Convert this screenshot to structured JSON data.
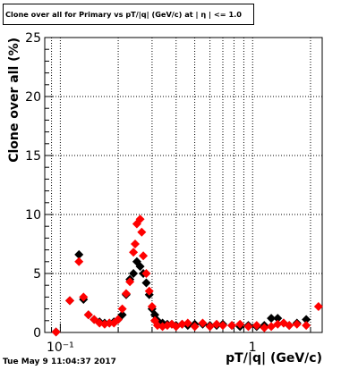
{
  "chart_data": {
    "type": "scatter",
    "title": "Clone  over all for Primary vs pT/|q| (GeV/c) at |  η | <= 1.0",
    "xlabel": "pT/|q| (GeV/c)",
    "ylabel": "Clone  over all (%)",
    "x_scale": "log",
    "xlim": [
      0.083,
      2.3
    ],
    "ylim": [
      0,
      25
    ],
    "y_ticks": [
      "0",
      "5",
      "10",
      "15",
      "20",
      "25"
    ],
    "x_tick_labels": [
      {
        "value": 0.1,
        "label": "10⁻¹"
      },
      {
        "value": 1,
        "label": "1"
      }
    ],
    "grid": true,
    "series": [
      {
        "color": "#000000",
        "marker": "diamond",
        "points": [
          {
            "x": 0.095,
            "y": 0.05
          },
          {
            "x": 0.112,
            "y": 2.7
          },
          {
            "x": 0.125,
            "y": 6.6
          },
          {
            "x": 0.132,
            "y": 2.8
          },
          {
            "x": 0.14,
            "y": 1.5
          },
          {
            "x": 0.15,
            "y": 1.1
          },
          {
            "x": 0.16,
            "y": 0.9
          },
          {
            "x": 0.17,
            "y": 0.8
          },
          {
            "x": 0.18,
            "y": 0.8
          },
          {
            "x": 0.19,
            "y": 0.9
          },
          {
            "x": 0.2,
            "y": 1.1
          },
          {
            "x": 0.21,
            "y": 1.5
          },
          {
            "x": 0.22,
            "y": 3.2
          },
          {
            "x": 0.23,
            "y": 4.5
          },
          {
            "x": 0.24,
            "y": 5.0
          },
          {
            "x": 0.25,
            "y": 6.0
          },
          {
            "x": 0.26,
            "y": 5.6
          },
          {
            "x": 0.27,
            "y": 5.0
          },
          {
            "x": 0.28,
            "y": 4.2
          },
          {
            "x": 0.29,
            "y": 3.2
          },
          {
            "x": 0.3,
            "y": 2.0
          },
          {
            "x": 0.31,
            "y": 1.5
          },
          {
            "x": 0.32,
            "y": 1.0
          },
          {
            "x": 0.34,
            "y": 0.8
          },
          {
            "x": 0.36,
            "y": 0.7
          },
          {
            "x": 0.38,
            "y": 0.7
          },
          {
            "x": 0.4,
            "y": 0.6
          },
          {
            "x": 0.43,
            "y": 0.7
          },
          {
            "x": 0.46,
            "y": 0.6
          },
          {
            "x": 0.5,
            "y": 0.7
          },
          {
            "x": 0.55,
            "y": 0.7
          },
          {
            "x": 0.6,
            "y": 0.6
          },
          {
            "x": 0.65,
            "y": 0.6
          },
          {
            "x": 0.7,
            "y": 0.7
          },
          {
            "x": 0.78,
            "y": 0.6
          },
          {
            "x": 0.86,
            "y": 0.5
          },
          {
            "x": 0.95,
            "y": 0.6
          },
          {
            "x": 1.05,
            "y": 0.5
          },
          {
            "x": 1.15,
            "y": 0.6
          },
          {
            "x": 1.25,
            "y": 1.2
          },
          {
            "x": 1.35,
            "y": 1.2
          },
          {
            "x": 1.45,
            "y": 0.8
          },
          {
            "x": 1.55,
            "y": 0.6
          },
          {
            "x": 1.7,
            "y": 0.8
          },
          {
            "x": 1.9,
            "y": 1.1
          }
        ]
      },
      {
        "color": "#ff0000",
        "marker": "diamond",
        "points": [
          {
            "x": 0.095,
            "y": 0.0
          },
          {
            "x": 0.112,
            "y": 2.7
          },
          {
            "x": 0.125,
            "y": 6.0
          },
          {
            "x": 0.132,
            "y": 3.0
          },
          {
            "x": 0.14,
            "y": 1.5
          },
          {
            "x": 0.15,
            "y": 1.1
          },
          {
            "x": 0.16,
            "y": 0.8
          },
          {
            "x": 0.17,
            "y": 0.7
          },
          {
            "x": 0.18,
            "y": 0.8
          },
          {
            "x": 0.19,
            "y": 0.8
          },
          {
            "x": 0.2,
            "y": 1.1
          },
          {
            "x": 0.21,
            "y": 2.0
          },
          {
            "x": 0.22,
            "y": 3.3
          },
          {
            "x": 0.23,
            "y": 4.3
          },
          {
            "x": 0.24,
            "y": 6.8
          },
          {
            "x": 0.245,
            "y": 7.5
          },
          {
            "x": 0.25,
            "y": 9.2
          },
          {
            "x": 0.26,
            "y": 9.6
          },
          {
            "x": 0.265,
            "y": 8.5
          },
          {
            "x": 0.27,
            "y": 6.5
          },
          {
            "x": 0.28,
            "y": 5.0
          },
          {
            "x": 0.29,
            "y": 3.5
          },
          {
            "x": 0.3,
            "y": 2.2
          },
          {
            "x": 0.31,
            "y": 1.0
          },
          {
            "x": 0.32,
            "y": 0.6
          },
          {
            "x": 0.34,
            "y": 0.5
          },
          {
            "x": 0.36,
            "y": 0.6
          },
          {
            "x": 0.38,
            "y": 0.7
          },
          {
            "x": 0.4,
            "y": 0.5
          },
          {
            "x": 0.43,
            "y": 0.7
          },
          {
            "x": 0.46,
            "y": 0.8
          },
          {
            "x": 0.5,
            "y": 0.5
          },
          {
            "x": 0.55,
            "y": 0.8
          },
          {
            "x": 0.6,
            "y": 0.5
          },
          {
            "x": 0.65,
            "y": 0.7
          },
          {
            "x": 0.7,
            "y": 0.6
          },
          {
            "x": 0.78,
            "y": 0.6
          },
          {
            "x": 0.86,
            "y": 0.7
          },
          {
            "x": 0.95,
            "y": 0.5
          },
          {
            "x": 1.05,
            "y": 0.6
          },
          {
            "x": 1.15,
            "y": 0.4
          },
          {
            "x": 1.25,
            "y": 0.5
          },
          {
            "x": 1.35,
            "y": 0.7
          },
          {
            "x": 1.45,
            "y": 0.8
          },
          {
            "x": 1.55,
            "y": 0.6
          },
          {
            "x": 1.7,
            "y": 0.7
          },
          {
            "x": 1.9,
            "y": 0.6
          },
          {
            "x": 2.2,
            "y": 2.2
          }
        ]
      }
    ]
  },
  "footer": {
    "timestamp": "Tue May  9 11:04:37 2017"
  }
}
